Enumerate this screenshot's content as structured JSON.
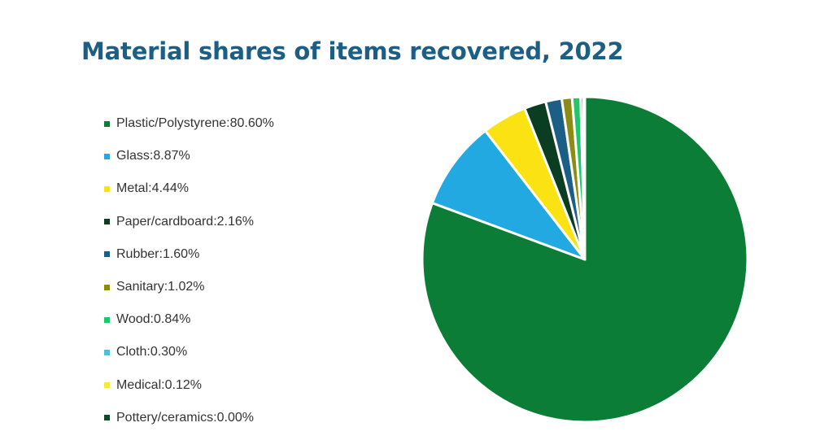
{
  "chart_data": {
    "type": "pie",
    "title": "Material shares of items recovered, 2022",
    "start_angle": "12 o'clock",
    "direction": "clockwise",
    "legend_position": "left",
    "slices": [
      {
        "label": "Plastic/Polystyrene",
        "value": 80.6,
        "value_label": "80.60%",
        "color": "#0c7d36"
      },
      {
        "label": "Glass",
        "value": 8.87,
        "value_label": "8.87%",
        "color": "#23a9e1"
      },
      {
        "label": "Metal",
        "value": 4.44,
        "value_label": "4.44%",
        "color": "#fbe212"
      },
      {
        "label": "Paper/cardboard",
        "value": 2.16,
        "value_label": "2.16%",
        "color": "#0b3d22"
      },
      {
        "label": "Rubber",
        "value": 1.6,
        "value_label": "1.60%",
        "color": "#1b5e86"
      },
      {
        "label": "Sanitary",
        "value": 1.02,
        "value_label": "1.02%",
        "color": "#8c8c14"
      },
      {
        "label": "Wood",
        "value": 0.84,
        "value_label": "0.84%",
        "color": "#22c56a"
      },
      {
        "label": "Cloth",
        "value": 0.3,
        "value_label": "0.30%",
        "color": "#5ab9dd"
      },
      {
        "label": "Medical",
        "value": 0.12,
        "value_label": "0.12%",
        "color": "#f5ea3c"
      },
      {
        "label": "Pottery/ceramics",
        "value": 0.0,
        "value_label": "0.00%",
        "color": "#0d4a2c"
      }
    ]
  }
}
